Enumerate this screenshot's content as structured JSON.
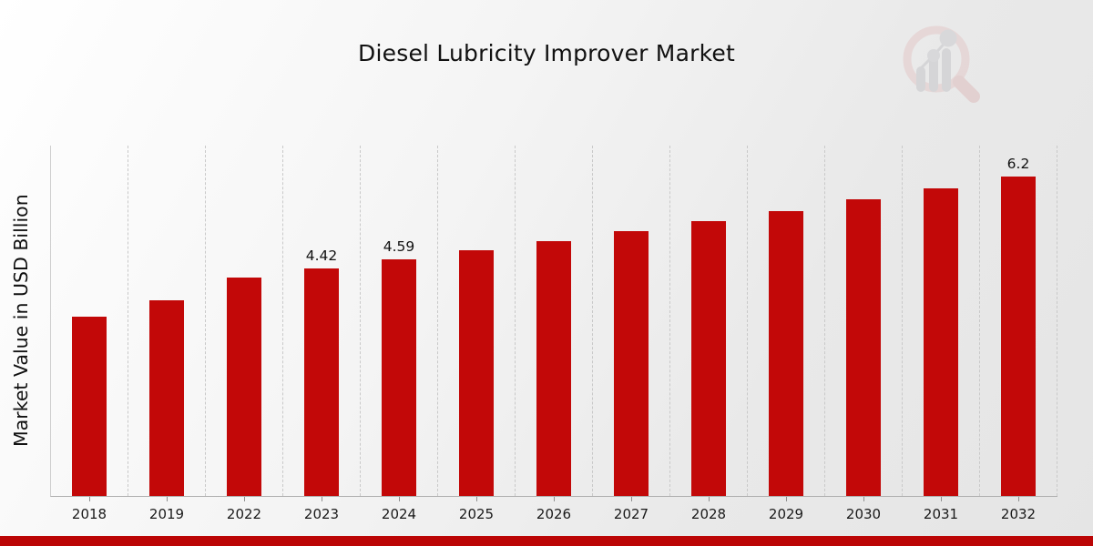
{
  "title": "Diesel Lubricity Improver Market",
  "y_axis_label": "Market Value in USD Billion",
  "chart_data": {
    "type": "bar",
    "title": "Diesel Lubricity Improver Market",
    "xlabel": "",
    "ylabel": "Market Value in USD Billion",
    "categories": [
      "2018",
      "2019",
      "2022",
      "2023",
      "2024",
      "2025",
      "2026",
      "2027",
      "2028",
      "2029",
      "2030",
      "2031",
      "2032"
    ],
    "values": [
      3.48,
      3.8,
      4.24,
      4.42,
      4.59,
      4.77,
      4.95,
      5.14,
      5.33,
      5.53,
      5.75,
      5.97,
      6.2
    ],
    "bar_value_labels": [
      "",
      "",
      "",
      "4.42",
      "4.59",
      "",
      "",
      "",
      "",
      "",
      "",
      "",
      "6.2"
    ],
    "ylim": [
      0,
      6.8
    ],
    "grid": "vertical-dashed",
    "legend": "none",
    "unit": "USD Billion"
  },
  "colors": {
    "bar": "#c20808",
    "footer_bar": "#bb0505",
    "gridline": "#c9c9c9",
    "axis_line": "#aeaeae",
    "text": "#111111",
    "watermark_ring": "#e3c6c6",
    "watermark_gray": "#c3c3c7"
  },
  "icons": {
    "watermark": "magnifier-bar-chart-icon"
  }
}
